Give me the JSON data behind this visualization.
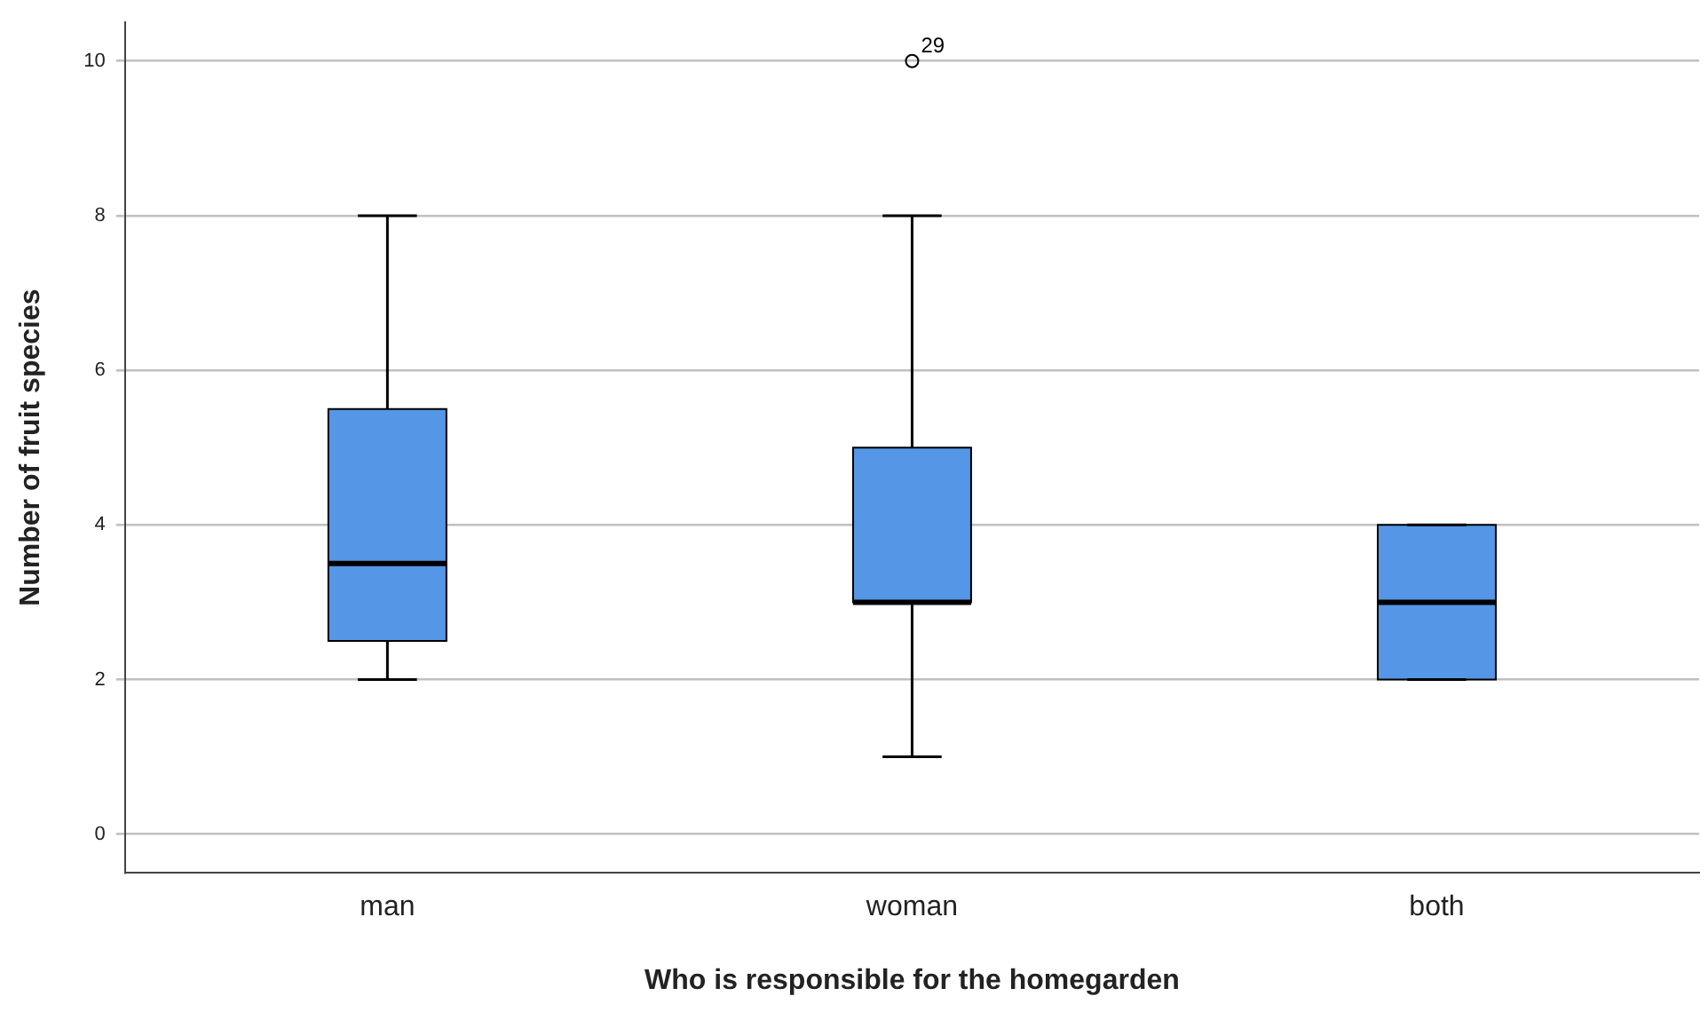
{
  "chart_data": {
    "type": "box",
    "xlabel": "Who is responsible for the homegarden",
    "ylabel": "Number of fruit species",
    "categories": [
      "man",
      "woman",
      "both"
    ],
    "color": "#5596e6",
    "boxes": [
      {
        "low": 2,
        "q1": 2.5,
        "median": 3.5,
        "q3": 5.5,
        "high": 8
      },
      {
        "low": 1,
        "q1": 3,
        "median": 3,
        "q3": 5,
        "high": 8,
        "outliers": [
          10
        ]
      },
      {
        "low": 2,
        "q1": 2,
        "median": 3,
        "q3": 4,
        "high": 4
      }
    ],
    "ylim": [
      -0.5,
      10.5
    ],
    "yticks": [
      0,
      2,
      4,
      6,
      8,
      10
    ],
    "grid": "y",
    "legend": false,
    "marker": "circle",
    "annotations": [
      "29"
    ]
  }
}
